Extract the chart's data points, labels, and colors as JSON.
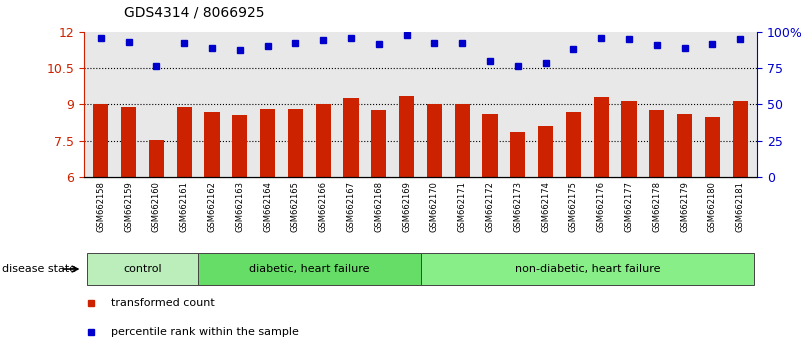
{
  "title": "GDS4314 / 8066925",
  "samples": [
    "GSM662158",
    "GSM662159",
    "GSM662160",
    "GSM662161",
    "GSM662162",
    "GSM662163",
    "GSM662164",
    "GSM662165",
    "GSM662166",
    "GSM662167",
    "GSM662168",
    "GSM662169",
    "GSM662170",
    "GSM662171",
    "GSM662172",
    "GSM662173",
    "GSM662174",
    "GSM662175",
    "GSM662176",
    "GSM662177",
    "GSM662178",
    "GSM662179",
    "GSM662180",
    "GSM662181"
  ],
  "bar_values": [
    9.0,
    8.9,
    7.55,
    8.9,
    8.7,
    8.55,
    8.8,
    8.8,
    9.0,
    9.25,
    8.75,
    9.35,
    9.0,
    9.0,
    8.6,
    7.85,
    8.1,
    8.7,
    9.3,
    9.15,
    8.75,
    8.6,
    8.5,
    9.15
  ],
  "dot_values": [
    11.75,
    11.6,
    10.6,
    11.55,
    11.35,
    11.25,
    11.4,
    11.55,
    11.65,
    11.75,
    11.5,
    11.85,
    11.55,
    11.55,
    10.8,
    10.6,
    10.7,
    11.3,
    11.75,
    11.7,
    11.45,
    11.35,
    11.5,
    11.7
  ],
  "ylim_left": [
    6,
    12
  ],
  "ylim_right": [
    0,
    100
  ],
  "yticks_left": [
    6,
    7.5,
    9,
    10.5,
    12
  ],
  "yticks_right": [
    0,
    25,
    50,
    75,
    100
  ],
  "ytick_labels_right": [
    "0",
    "25",
    "50",
    "75",
    "100%"
  ],
  "hlines": [
    7.5,
    9.0,
    10.5
  ],
  "bar_color": "#cc2200",
  "dot_color": "#0000cc",
  "groups": [
    {
      "label": "control",
      "start": 0,
      "end": 4,
      "color": "#bbeebb"
    },
    {
      "label": "diabetic, heart failure",
      "start": 4,
      "end": 12,
      "color": "#66dd66"
    },
    {
      "label": "non-diabetic, heart failure",
      "start": 12,
      "end": 24,
      "color": "#88ee88"
    }
  ],
  "plot_bg_color": "#e8e8e8",
  "xtick_area_bg": "#d0d0d0",
  "disease_state_label": "disease state",
  "legend_items": [
    {
      "label": "transformed count",
      "color": "#cc2200"
    },
    {
      "label": "percentile rank within the sample",
      "color": "#0000cc"
    }
  ]
}
